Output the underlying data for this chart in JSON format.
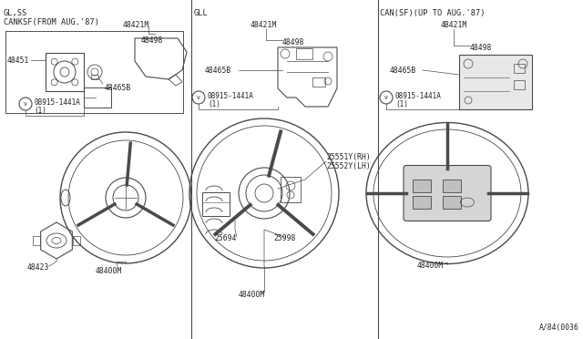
{
  "bg_color": "#ffffff",
  "line_color": "#4a4a4a",
  "text_color": "#222222",
  "fig_number": "A/84(0036",
  "dividers": [
    0.328,
    0.648
  ],
  "sec1_label": "GL,SS\nCANKSF(FROM AUG.'87)",
  "sec2_label": "GLL",
  "sec3_label": "CAN(SF)(UP TO AUG.'87)"
}
